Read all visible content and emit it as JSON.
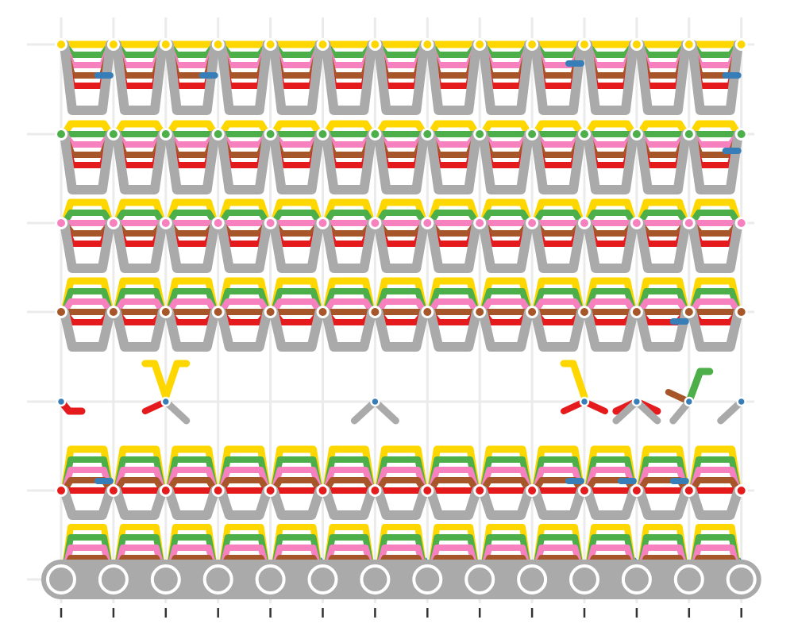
{
  "chart_data": {
    "type": "line",
    "title": "",
    "xlabel": "",
    "ylabel": "",
    "x_ticks": 14,
    "rows": 7,
    "grid": true,
    "legend": "none",
    "series": [
      {
        "color": "#e41a1c",
        "row": 6,
        "pattern": "bracket",
        "offset": 5
      },
      {
        "color": "#377eb8",
        "row": 5,
        "pattern": "sparse",
        "offset": 4
      },
      {
        "color": "#4daf4a",
        "row": 4,
        "pattern": "bracket",
        "offset": 3
      },
      {
        "color": "#984ea3",
        "row": 3,
        "pattern": "none",
        "offset": 0
      },
      {
        "color": "#a65628",
        "row": 3,
        "pattern": "bracket",
        "offset": 2
      },
      {
        "color": "#f781bf",
        "row": 2,
        "pattern": "bracket",
        "offset": 1
      },
      {
        "color": "#ffd700",
        "row": 1,
        "pattern": "bracket",
        "offset": 0
      },
      {
        "color": "#999999",
        "row": 7,
        "pattern": "base",
        "offset": 6
      }
    ],
    "row_nodes": [
      {
        "row": 1,
        "color": "#ffd700",
        "filled": true
      },
      {
        "row": 2,
        "color": "#4daf4a",
        "filled": true
      },
      {
        "row": 3,
        "color": "#f781bf",
        "filled": true
      },
      {
        "row": 4,
        "color": "#a65628",
        "filled": true
      },
      {
        "row": 5,
        "color": "#377eb8",
        "filled": true
      },
      {
        "row": 6,
        "color": "#e41a1c",
        "filled": true
      },
      {
        "row": 7,
        "color": "#aaaaaa",
        "filled": true
      }
    ],
    "sparse_row5": [
      {
        "col": 0,
        "shape": "red-hook-right"
      },
      {
        "col": 2,
        "shape": "yellow-v"
      },
      {
        "col": 6,
        "shape": "gray-peak"
      },
      {
        "col": 10,
        "shape": "yellow-down"
      },
      {
        "col": 11,
        "shape": "red-peak"
      },
      {
        "col": 12,
        "shape": "green-up"
      },
      {
        "col": 13,
        "shape": "gray-left"
      }
    ]
  }
}
